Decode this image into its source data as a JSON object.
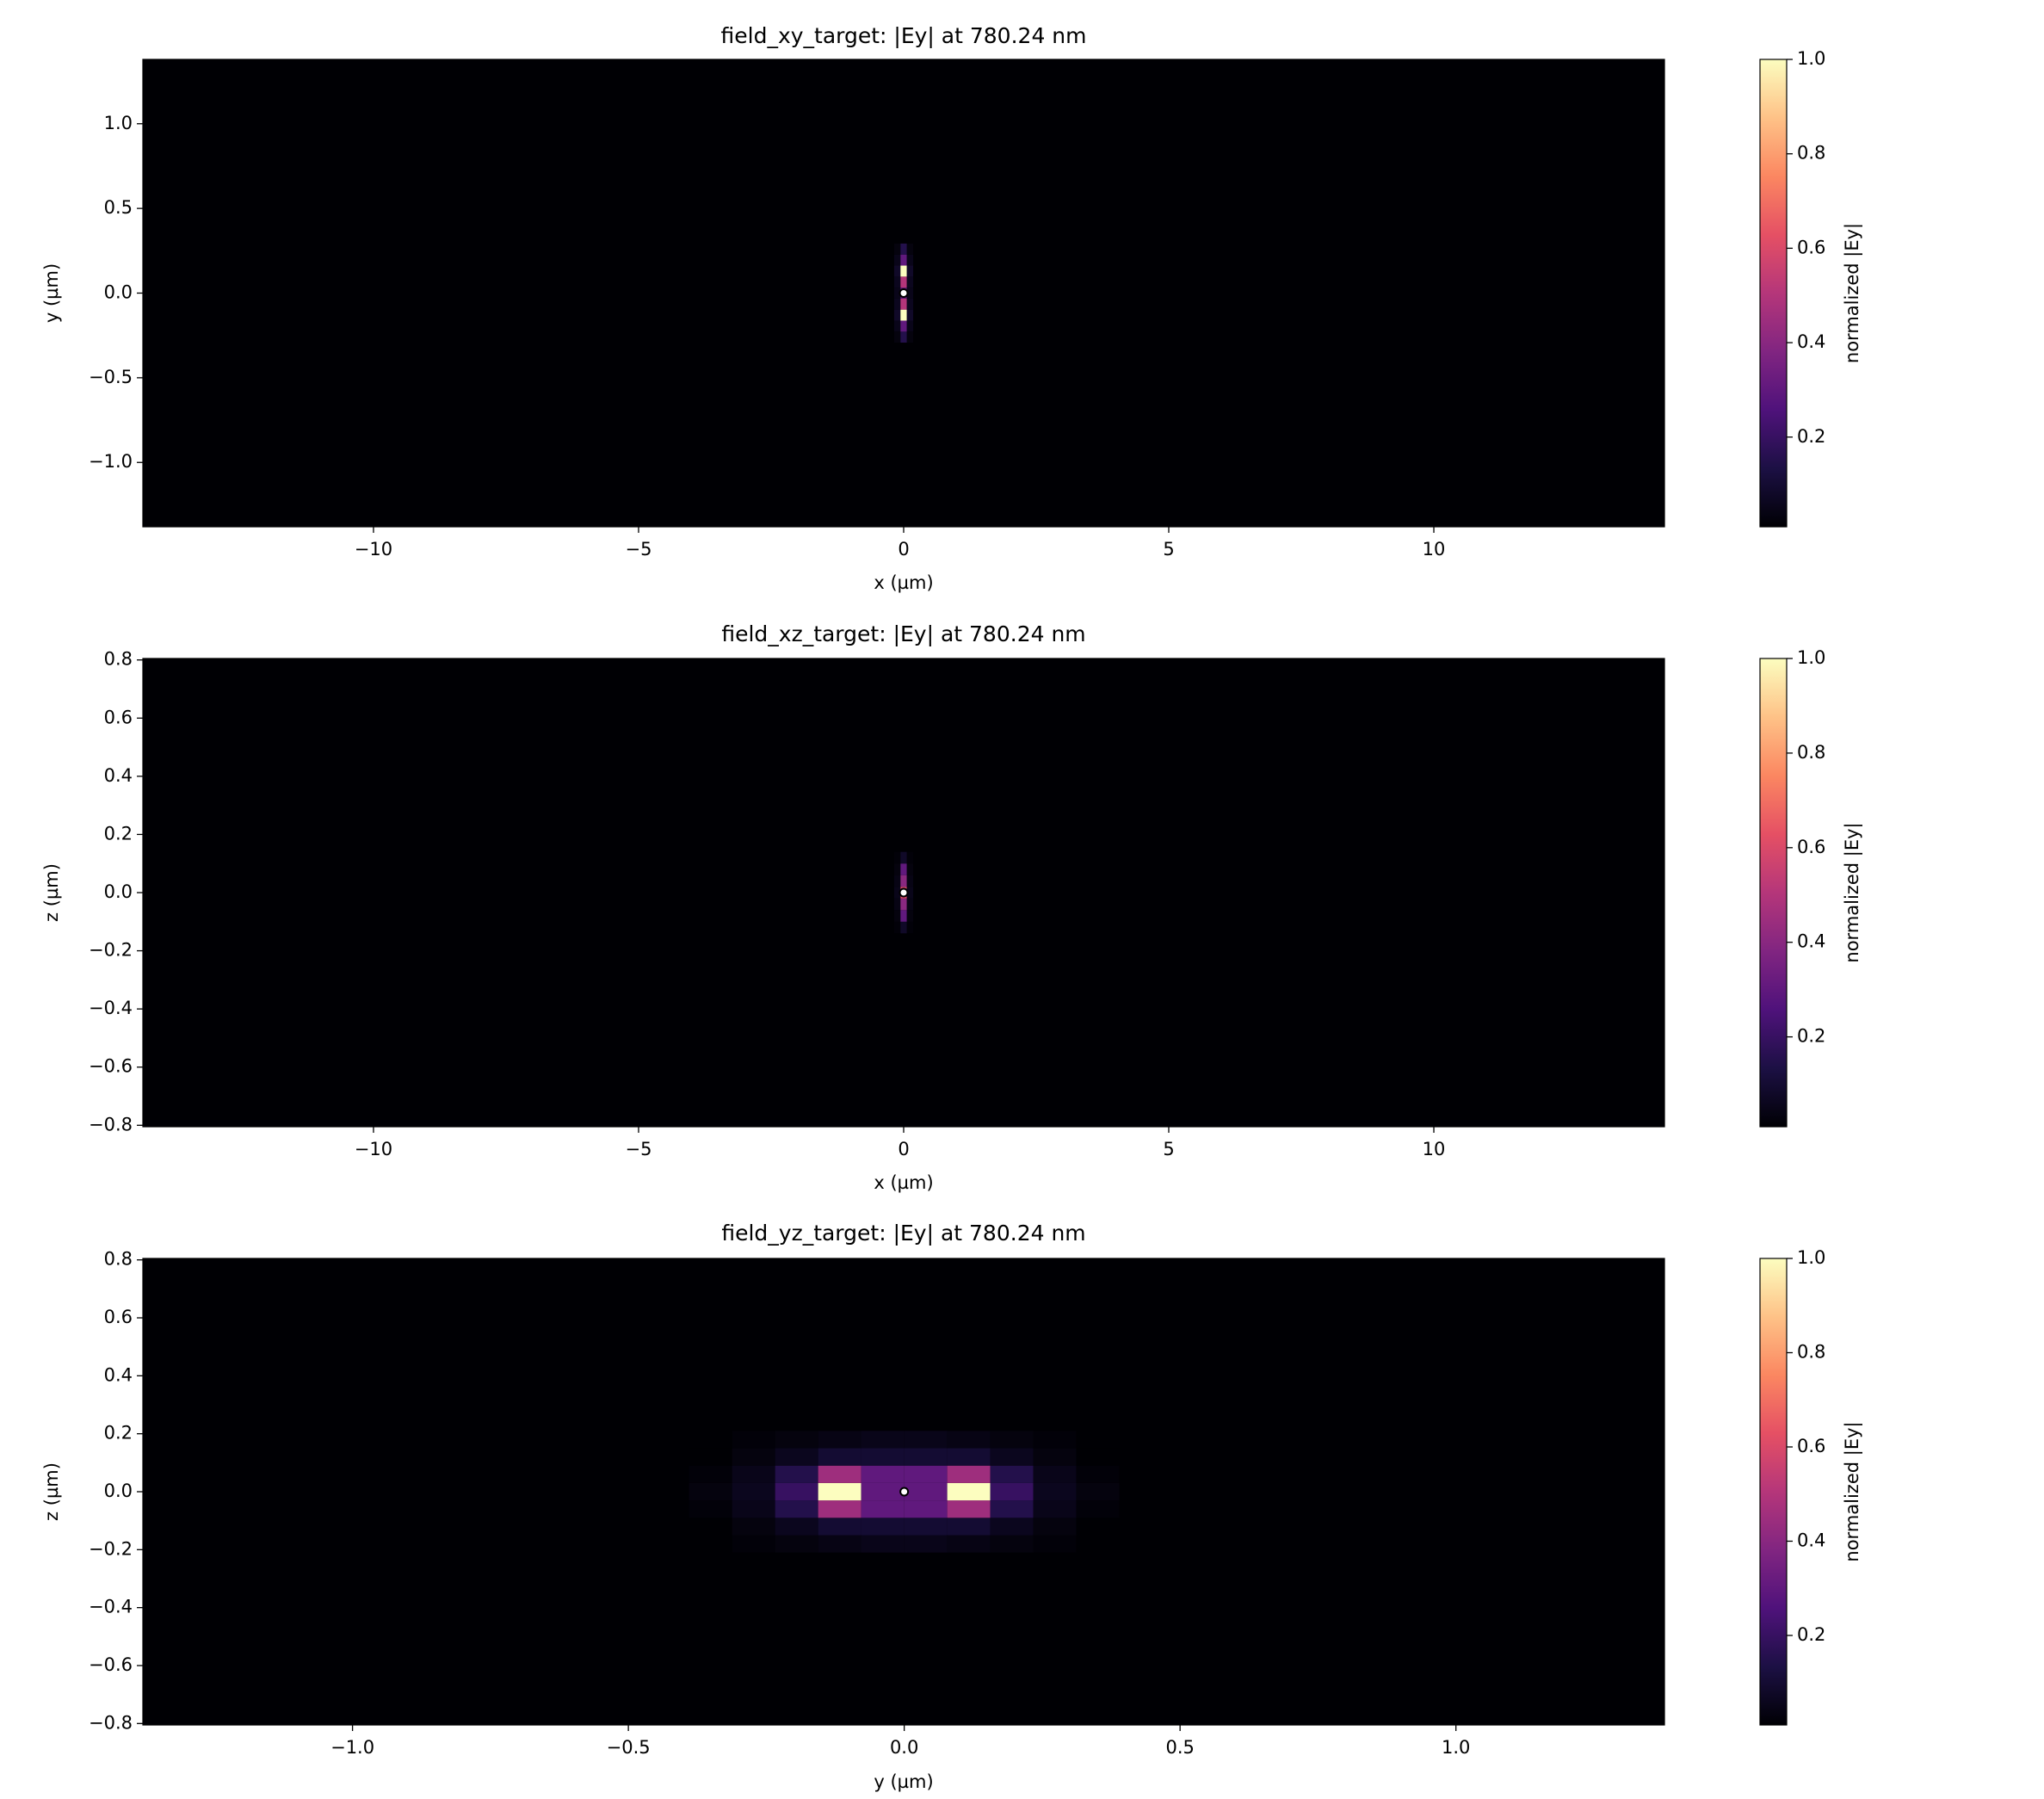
{
  "chart_data": [
    {
      "type": "heatmap",
      "title": "field_xy_target: |Ey| at 780.24 nm",
      "x_label": "x (µm)",
      "y_label": "y (µm)",
      "xlim": [
        -14.35,
        14.35
      ],
      "ylim": [
        -1.38,
        1.38
      ],
      "xticks": [
        {
          "value": -10,
          "label": "−10"
        },
        {
          "value": -5,
          "label": "−5"
        },
        0,
        5,
        10
      ],
      "yticks": [
        {
          "value": -1,
          "label": "−1.0"
        },
        {
          "value": -0.5,
          "label": "−0.5"
        },
        {
          "value": 0,
          "label": "0.0"
        },
        0.5,
        {
          "value": 1,
          "label": "1.0"
        }
      ],
      "x": [
        -0.12,
        0,
        0.12
      ],
      "y": [
        -0.26,
        -0.195,
        -0.13,
        -0.065,
        0,
        0.065,
        0.13,
        0.195,
        0.26
      ],
      "z": [
        [
          0.03,
          0.15,
          0.03
        ],
        [
          0.05,
          0.3,
          0.05
        ],
        [
          0.08,
          1.0,
          0.08
        ],
        [
          0.06,
          0.5,
          0.06
        ],
        [
          0.05,
          0.3,
          0.05
        ],
        [
          0.06,
          0.5,
          0.06
        ],
        [
          0.08,
          1.0,
          0.08
        ],
        [
          0.05,
          0.3,
          0.05
        ],
        [
          0.03,
          0.15,
          0.03
        ]
      ],
      "marker": {
        "x": 0,
        "y": 0
      },
      "colormap": [
        "#000004",
        "#1c1044",
        "#4f127b",
        "#812581",
        "#b5367a",
        "#e55064",
        "#fb8761",
        "#fec287",
        "#fcfdbf"
      ],
      "clim": [
        0.01,
        1
      ],
      "colorbar_label": "normalized |Ey|",
      "cticks": [
        0.2,
        0.4,
        0.6,
        0.8,
        {
          "value": 1,
          "label": "1.0"
        }
      ]
    },
    {
      "type": "heatmap",
      "title": "field_xz_target: |Ey| at 780.24 nm",
      "x_label": "x (µm)",
      "y_label": "z (µm)",
      "xlim": [
        -14.35,
        14.35
      ],
      "ylim": [
        -0.805,
        0.805
      ],
      "xticks": [
        {
          "value": -10,
          "label": "−10"
        },
        {
          "value": -5,
          "label": "−5"
        },
        0,
        5,
        10
      ],
      "yticks": [
        {
          "value": -0.8,
          "label": "−0.8"
        },
        {
          "value": -0.6,
          "label": "−0.6"
        },
        {
          "value": -0.4,
          "label": "−0.4"
        },
        {
          "value": -0.2,
          "label": "−0.2"
        },
        {
          "value": 0,
          "label": "0.0"
        },
        0.2,
        0.4,
        0.6,
        0.8
      ],
      "x": [
        -0.12,
        0,
        0.12
      ],
      "y": [
        -0.12,
        -0.08,
        -0.04,
        0,
        0.04,
        0.08,
        0.12
      ],
      "z": [
        [
          0.02,
          0.08,
          0.02
        ],
        [
          0.03,
          0.3,
          0.03
        ],
        [
          0.04,
          0.4,
          0.04
        ],
        [
          0.05,
          0.6,
          0.05
        ],
        [
          0.04,
          0.4,
          0.04
        ],
        [
          0.03,
          0.3,
          0.03
        ],
        [
          0.02,
          0.08,
          0.02
        ]
      ],
      "marker": {
        "x": 0,
        "y": 0
      },
      "colormap": [
        "#000004",
        "#1c1044",
        "#4f127b",
        "#812581",
        "#b5367a",
        "#e55064",
        "#fb8761",
        "#fec287",
        "#fcfdbf"
      ],
      "clim": [
        0.01,
        1
      ],
      "colorbar_label": "normalized |Ey|",
      "cticks": [
        0.2,
        0.4,
        0.6,
        0.8,
        {
          "value": 1,
          "label": "1.0"
        }
      ]
    },
    {
      "type": "heatmap",
      "title": "field_yz_target: |Ey| at 780.24 nm",
      "x_label": "y (µm)",
      "y_label": "z (µm)",
      "xlim": [
        -1.38,
        1.378
      ],
      "ylim": [
        -0.805,
        0.805
      ],
      "xticks": [
        {
          "value": -1,
          "label": "−1.0"
        },
        {
          "value": -0.5,
          "label": "−0.5"
        },
        {
          "value": 0,
          "label": "0.0"
        },
        0.5,
        {
          "value": 1,
          "label": "1.0"
        }
      ],
      "yticks": [
        {
          "value": -0.8,
          "label": "−0.8"
        },
        {
          "value": -0.6,
          "label": "−0.6"
        },
        {
          "value": -0.4,
          "label": "−0.4"
        },
        {
          "value": -0.2,
          "label": "−0.2"
        },
        {
          "value": 0,
          "label": "0.0"
        },
        0.2,
        0.4,
        0.6,
        0.8
      ],
      "x": [
        -0.351,
        -0.273,
        -0.195,
        -0.117,
        -0.039,
        0.039,
        0.117,
        0.195,
        0.273,
        0.351
      ],
      "y": [
        -0.18,
        -0.12,
        -0.06,
        0,
        0.06,
        0.12,
        0.18
      ],
      "z": [
        [
          0.01,
          0.02,
          0.03,
          0.04,
          0.05,
          0.05,
          0.04,
          0.03,
          0.02,
          0.01
        ],
        [
          0.01,
          0.03,
          0.06,
          0.1,
          0.1,
          0.1,
          0.1,
          0.06,
          0.03,
          0.01
        ],
        [
          0.02,
          0.05,
          0.15,
          0.45,
          0.3,
          0.3,
          0.45,
          0.15,
          0.05,
          0.02
        ],
        [
          0.03,
          0.06,
          0.2,
          1.0,
          0.3,
          0.3,
          1.0,
          0.2,
          0.06,
          0.03
        ],
        [
          0.02,
          0.05,
          0.15,
          0.45,
          0.3,
          0.3,
          0.45,
          0.15,
          0.05,
          0.02
        ],
        [
          0.01,
          0.03,
          0.06,
          0.1,
          0.1,
          0.1,
          0.1,
          0.06,
          0.03,
          0.01
        ],
        [
          0.01,
          0.02,
          0.03,
          0.04,
          0.05,
          0.05,
          0.04,
          0.03,
          0.02,
          0.01
        ]
      ],
      "marker": {
        "x": 0,
        "y": 0
      },
      "colormap": [
        "#000004",
        "#1c1044",
        "#4f127b",
        "#812581",
        "#b5367a",
        "#e55064",
        "#fb8761",
        "#fec287",
        "#fcfdbf"
      ],
      "clim": [
        0.01,
        1
      ],
      "colorbar_label": "normalized |Ey|",
      "cticks": [
        0.2,
        0.4,
        0.6,
        0.8,
        {
          "value": 1,
          "label": "1.0"
        }
      ]
    }
  ]
}
